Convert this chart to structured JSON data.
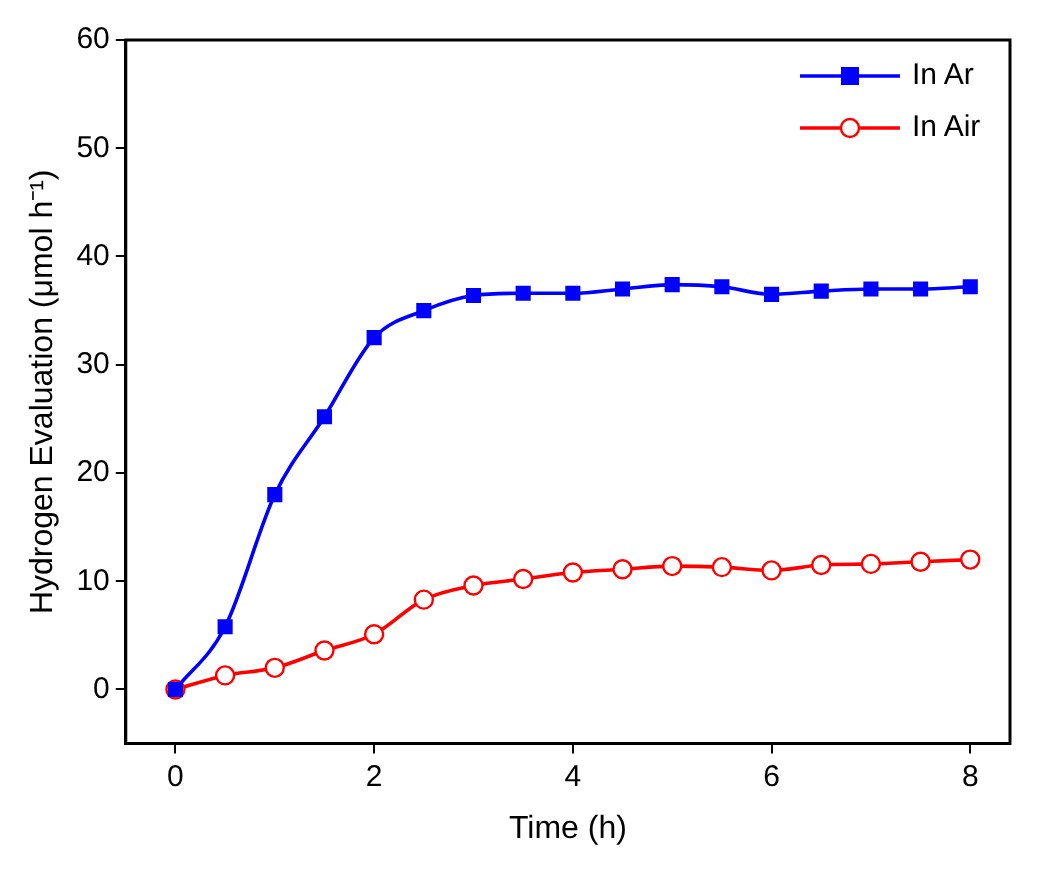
{
  "chart_data": {
    "type": "line",
    "xlabel": "Time (h)",
    "ylabel": "Hydrogen Evaluation (μmol h⁻¹)",
    "x": [
      0,
      0.5,
      1,
      1.5,
      2,
      2.5,
      3,
      3.5,
      4,
      4.5,
      5,
      5.5,
      6,
      6.5,
      7,
      7.5,
      8
    ],
    "series": [
      {
        "name": "In Ar",
        "color": "#0000ff",
        "marker": "square",
        "values": [
          0,
          5.8,
          18,
          25.2,
          32.5,
          35,
          36.4,
          36.6,
          36.6,
          37,
          37.4,
          37.2,
          36.5,
          36.8,
          37,
          37,
          37.2
        ]
      },
      {
        "name": "In Air",
        "color": "#ff0000",
        "marker": "circle",
        "values": [
          0,
          1.3,
          2,
          3.6,
          5.1,
          8.3,
          9.6,
          10.2,
          10.8,
          11.1,
          11.4,
          11.3,
          11,
          11.5,
          11.6,
          11.8,
          12
        ]
      }
    ],
    "xlim": [
      -0.5,
      8.4
    ],
    "xticks": [
      0,
      2,
      4,
      6,
      8
    ],
    "ylim": [
      -5,
      60
    ],
    "yticks": [
      0,
      10,
      20,
      30,
      40,
      50,
      60
    ],
    "grid": false,
    "legend": "top right",
    "line_style": "solid"
  }
}
